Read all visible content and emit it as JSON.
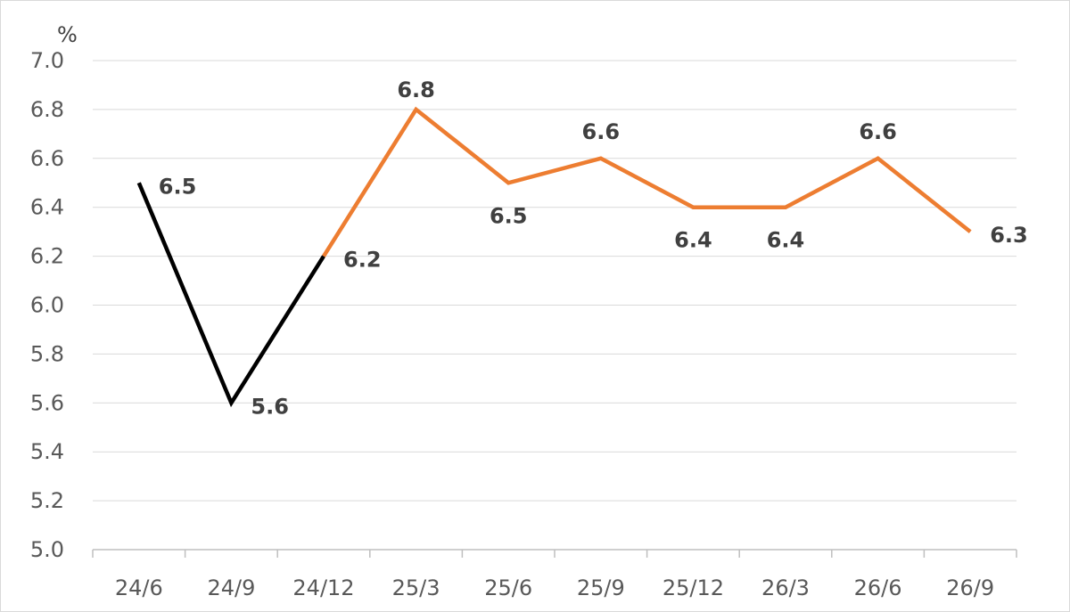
{
  "chart_data": {
    "type": "line",
    "unit_label": "%",
    "categories": [
      "24/6",
      "24/9",
      "24/12",
      "25/3",
      "25/6",
      "25/9",
      "25/12",
      "26/3",
      "26/6",
      "26/9"
    ],
    "series": [
      {
        "values": [
          6.5,
          5.6,
          6.2,
          null,
          null,
          null,
          null,
          null,
          null,
          null
        ],
        "color": "#000000"
      },
      {
        "values": [
          null,
          null,
          6.2,
          6.8,
          6.5,
          6.6,
          6.4,
          6.4,
          6.6,
          6.3
        ],
        "color": "#ed7d31"
      }
    ],
    "data_labels": [
      "6.5",
      "5.6",
      "6.2",
      "6.8",
      "6.5",
      "6.6",
      "6.4",
      "6.4",
      "6.6",
      "6.3"
    ],
    "y_ticks": [
      "5.0",
      "5.2",
      "5.4",
      "5.6",
      "5.8",
      "6.0",
      "6.2",
      "6.4",
      "6.6",
      "6.8",
      "7.0"
    ],
    "ylim": [
      5.0,
      7.0
    ],
    "grid": true,
    "legend": "none"
  }
}
